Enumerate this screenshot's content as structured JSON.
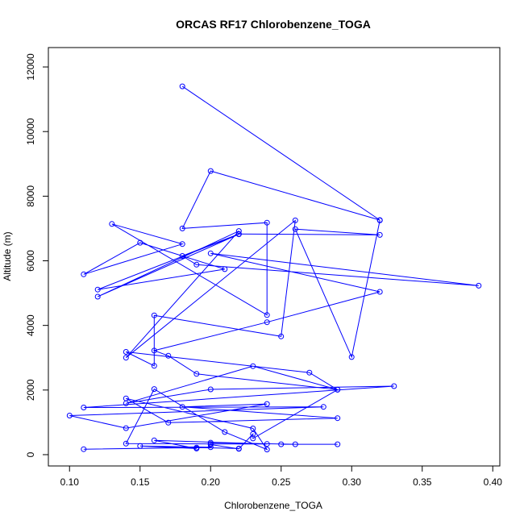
{
  "chart_data": {
    "type": "line",
    "title": "ORCAS RF17 Chlorobenzene_TOGA",
    "xlabel": "Chlorobenzene_TOGA",
    "ylabel": "Altitude (m)",
    "xlim": [
      0.085,
      0.405
    ],
    "ylim": [
      -350,
      12600
    ],
    "xticks": [
      "0.10",
      "0.15",
      "0.20",
      "0.25",
      "0.30",
      "0.35",
      "0.40"
    ],
    "yticks": [
      "0",
      "2000",
      "4000",
      "6000",
      "8000",
      "10000",
      "12000"
    ],
    "grid": false,
    "series": [
      {
        "color": "#0000ff",
        "marker": "open-circle",
        "x": [
          0.18,
          0.32,
          0.2,
          0.18,
          0.24,
          0.24,
          0.13,
          0.18,
          0.11,
          0.15,
          0.21,
          0.12,
          0.22,
          0.12,
          0.22,
          0.14,
          0.26,
          0.25,
          0.16,
          0.16,
          0.14,
          0.27,
          0.29,
          0.23,
          0.14,
          0.2,
          0.33,
          0.11,
          0.28,
          0.1,
          0.14,
          0.24,
          0.18,
          0.29,
          0.17,
          0.14,
          0.23,
          0.24,
          0.21,
          0.16,
          0.14,
          0.2,
          0.24,
          0.16,
          0.19,
          0.15,
          0.2,
          0.11,
          0.19,
          0.22
        ],
        "y": [
          11400,
          7260,
          8780,
          7000,
          7180,
          4320,
          7140,
          6520,
          5580,
          6560,
          5740,
          5110,
          6820,
          4890,
          6920,
          3000,
          7250,
          3660,
          4310,
          2750,
          3180,
          2540,
          2010,
          2740,
          1590,
          2020,
          2120,
          1460,
          1480,
          1210,
          820,
          1570,
          1480,
          1130,
          990,
          1740,
          810,
          160,
          700,
          2030,
          340,
          330,
          330,
          440,
          190,
          270,
          230,
          170,
          220,
          190
        ]
      },
      {
        "color": "#0000ff",
        "marker": "open-circle",
        "x": [
          0.32,
          0.3,
          0.26,
          0.32,
          0.22,
          0.18,
          0.19,
          0.39,
          0.2,
          0.32,
          0.24,
          0.16,
          0.17,
          0.19,
          0.29,
          0.23,
          0.23,
          0.22,
          0.2,
          0.2,
          0.26,
          0.29,
          0.25
        ],
        "y": [
          7250,
          3020,
          6980,
          6800,
          6830,
          6150,
          5880,
          5230,
          6230,
          5040,
          4100,
          3220,
          3060,
          2500,
          2010,
          500,
          640,
          180,
          310,
          370,
          320,
          320,
          320
        ]
      }
    ]
  }
}
